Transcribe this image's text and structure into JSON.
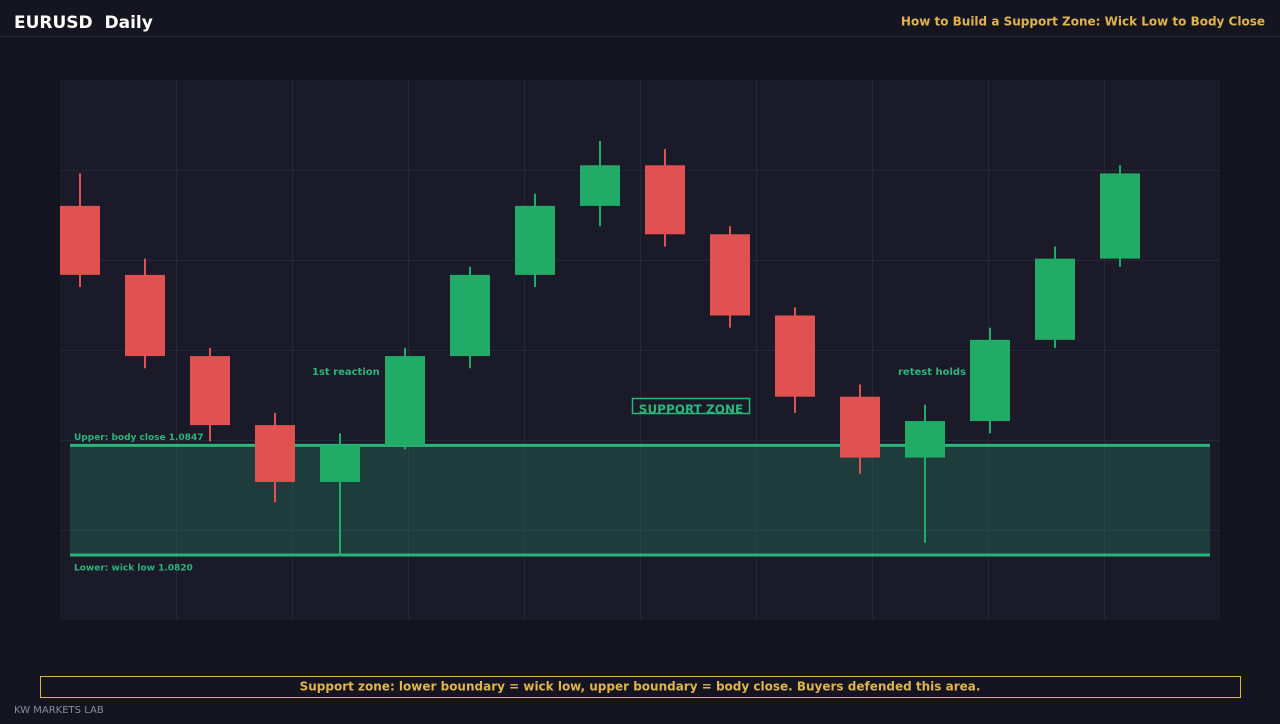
{
  "header": {
    "title": "EURUSD  Daily",
    "subtitle": "How to Build a Support Zone: Wick Low to Body Close"
  },
  "chart_data": {
    "type": "candlestick",
    "open": [
      1.0906,
      1.0889,
      1.0869,
      1.0852,
      1.0838,
      1.0847,
      1.0869,
      1.0889,
      1.0906,
      1.0916,
      1.0899,
      1.0879,
      1.0859,
      1.0844,
      1.0853,
      1.0873,
      1.0893
    ],
    "high": [
      1.0914,
      1.0893,
      1.0871,
      1.0855,
      1.085,
      1.0871,
      1.0891,
      1.0909,
      1.0922,
      1.092,
      1.0901,
      1.0881,
      1.0862,
      1.0857,
      1.0876,
      1.0896,
      1.0916
    ],
    "low": [
      1.0886,
      1.0866,
      1.0848,
      1.0833,
      1.082,
      1.0846,
      1.0866,
      1.0886,
      1.0901,
      1.0896,
      1.0876,
      1.0855,
      1.084,
      1.0823,
      1.085,
      1.0871,
      1.0891
    ],
    "close": [
      1.0889,
      1.0869,
      1.0852,
      1.0838,
      1.0847,
      1.0869,
      1.0889,
      1.0906,
      1.0916,
      1.0899,
      1.0879,
      1.0859,
      1.0844,
      1.0853,
      1.0873,
      1.0893,
      1.0914
    ],
    "up_color": "#22ab67",
    "down_color": "#e05252",
    "ylim": [
      1.0804,
      1.0937
    ],
    "zone": {
      "upper": 1.0847,
      "lower": 1.082,
      "color": "#2bb57a",
      "upper_label": "Upper: body close 1.0847",
      "lower_label": "Lower: wick low 1.0820",
      "label": "SUPPORT ZONE"
    },
    "annotations": [
      "1st reaction",
      "retest holds"
    ]
  },
  "footer": {
    "caption": "Support zone: lower boundary = wick low, upper boundary = body close. Buyers defended this area.",
    "brand": "KW MARKETS LAB"
  }
}
